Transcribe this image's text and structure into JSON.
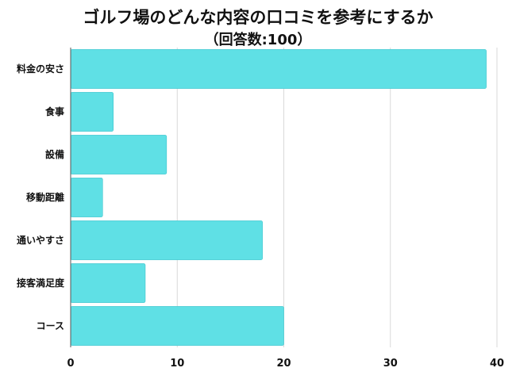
{
  "chart_data": {
    "type": "bar",
    "orientation": "horizontal",
    "title": "ゴルフ場のどんな内容の口コミを参考にするか",
    "subtitle": "（回答数:100）",
    "categories": [
      "料金の安さ",
      "食事",
      "設備",
      "移動距離",
      "通いやすさ",
      "接客満足度",
      "コース"
    ],
    "values": [
      39,
      4,
      9,
      3,
      18,
      7,
      20
    ],
    "xlim": [
      0,
      40
    ],
    "xticks": [
      0,
      10,
      20,
      30,
      40
    ],
    "grid": true,
    "legend": "none",
    "bar_color": "#5fe0e5",
    "bar_stroke": "#3cc4cc",
    "grid_color": "#d9d9d9",
    "xlabel": "",
    "ylabel": ""
  }
}
